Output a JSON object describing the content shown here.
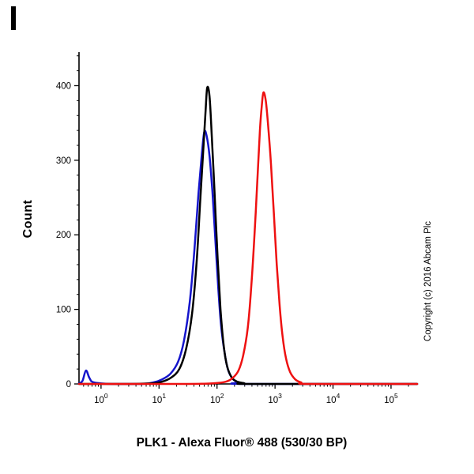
{
  "chart_data": {
    "type": "line",
    "title": "",
    "xlabel": "PLK1 - Alexa Fluor® 488 (530/30 BP)",
    "ylabel": "Count",
    "copyright": "Copyright (c) 2016 Abcam Plc",
    "x_scale": "log10",
    "xlim_log10": [
      -0.38,
      5.45
    ],
    "ylim": [
      0,
      445
    ],
    "x_ticks_exponents": [
      0,
      1,
      2,
      3,
      4,
      5
    ],
    "x_tick_base": "10",
    "y_ticks": [
      0,
      100,
      200,
      300,
      400
    ],
    "grid": false,
    "legend": "none",
    "axis_color": "#000000",
    "series": [
      {
        "name": "blue-curve",
        "color": "#1515cc",
        "points": [
          [
            -0.38,
            1
          ],
          [
            -0.32,
            4
          ],
          [
            -0.26,
            18
          ],
          [
            -0.2,
            8
          ],
          [
            -0.12,
            2
          ],
          [
            0.2,
            0
          ],
          [
            0.7,
            0
          ],
          [
            0.9,
            2
          ],
          [
            1.05,
            6
          ],
          [
            1.2,
            14
          ],
          [
            1.33,
            30
          ],
          [
            1.43,
            58
          ],
          [
            1.53,
            110
          ],
          [
            1.61,
            180
          ],
          [
            1.68,
            255
          ],
          [
            1.74,
            310
          ],
          [
            1.78,
            338
          ],
          [
            1.82,
            333
          ],
          [
            1.87,
            306
          ],
          [
            1.92,
            258
          ],
          [
            1.97,
            195
          ],
          [
            2.02,
            130
          ],
          [
            2.07,
            78
          ],
          [
            2.13,
            42
          ],
          [
            2.19,
            19
          ],
          [
            2.27,
            7
          ],
          [
            2.37,
            2
          ],
          [
            2.5,
            0
          ],
          [
            5.45,
            0
          ]
        ]
      },
      {
        "name": "black-curve",
        "color": "#000000",
        "points": [
          [
            -0.38,
            0
          ],
          [
            0.5,
            0
          ],
          [
            0.9,
            1
          ],
          [
            1.05,
            3
          ],
          [
            1.2,
            8
          ],
          [
            1.35,
            20
          ],
          [
            1.47,
            48
          ],
          [
            1.57,
            95
          ],
          [
            1.65,
            165
          ],
          [
            1.71,
            245
          ],
          [
            1.76,
            310
          ],
          [
            1.8,
            362
          ],
          [
            1.83,
            397
          ],
          [
            1.87,
            386
          ],
          [
            1.91,
            332
          ],
          [
            1.96,
            252
          ],
          [
            2.01,
            168
          ],
          [
            2.06,
            100
          ],
          [
            2.11,
            55
          ],
          [
            2.17,
            25
          ],
          [
            2.25,
            9
          ],
          [
            2.35,
            3
          ],
          [
            2.47,
            1
          ],
          [
            2.6,
            0
          ],
          [
            5.45,
            0
          ]
        ]
      },
      {
        "name": "red-curve",
        "color": "#ee1111",
        "points": [
          [
            -0.38,
            0
          ],
          [
            1.5,
            0
          ],
          [
            1.95,
            1
          ],
          [
            2.15,
            3
          ],
          [
            2.27,
            8
          ],
          [
            2.37,
            18
          ],
          [
            2.45,
            38
          ],
          [
            2.53,
            75
          ],
          [
            2.59,
            130
          ],
          [
            2.65,
            205
          ],
          [
            2.7,
            280
          ],
          [
            2.74,
            340
          ],
          [
            2.77,
            372
          ],
          [
            2.8,
            391
          ],
          [
            2.84,
            380
          ],
          [
            2.88,
            348
          ],
          [
            2.93,
            295
          ],
          [
            2.98,
            228
          ],
          [
            3.03,
            160
          ],
          [
            3.08,
            105
          ],
          [
            3.13,
            64
          ],
          [
            3.19,
            34
          ],
          [
            3.26,
            16
          ],
          [
            3.35,
            6
          ],
          [
            3.45,
            2
          ],
          [
            3.6,
            0
          ],
          [
            5.45,
            0
          ]
        ]
      }
    ]
  }
}
